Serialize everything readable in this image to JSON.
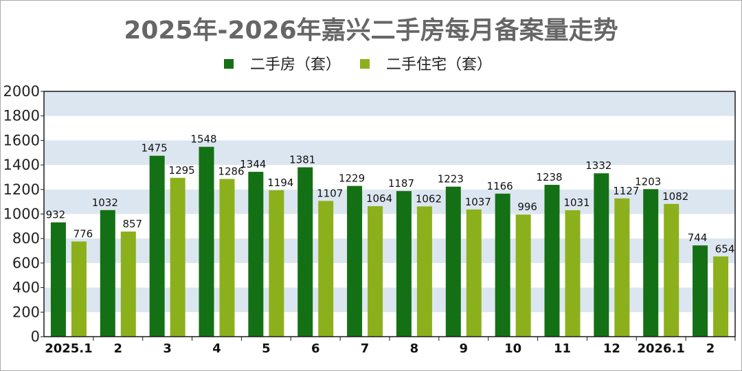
{
  "chart_data": {
    "type": "bar",
    "title": "2025年-2026年嘉兴二手房每月备案量走势",
    "xlabel": "",
    "ylabel": "",
    "categories": [
      "2025.1",
      "2",
      "3",
      "4",
      "5",
      "6",
      "7",
      "8",
      "9",
      "10",
      "11",
      "12",
      "2026.1",
      "2"
    ],
    "series": [
      {
        "name": "二手房（套）",
        "color": "#147014",
        "values": [
          932,
          1032,
          1475,
          1548,
          1344,
          1381,
          1229,
          1187,
          1223,
          1166,
          1238,
          1332,
          1203,
          744
        ]
      },
      {
        "name": "二手住宅（套）",
        "color": "#8cb01c",
        "values": [
          776,
          857,
          1295,
          1286,
          1194,
          1107,
          1064,
          1062,
          1037,
          996,
          1031,
          1127,
          1082,
          654
        ]
      }
    ],
    "ylim": [
      0,
      2000
    ],
    "yticks": [
      0,
      200,
      400,
      600,
      800,
      1000,
      1200,
      1400,
      1600,
      1800,
      2000
    ],
    "legend_position": "top-center",
    "background_bands": true,
    "band_color": "#dce6f0",
    "plot_border_color": "#1a1a1a"
  }
}
